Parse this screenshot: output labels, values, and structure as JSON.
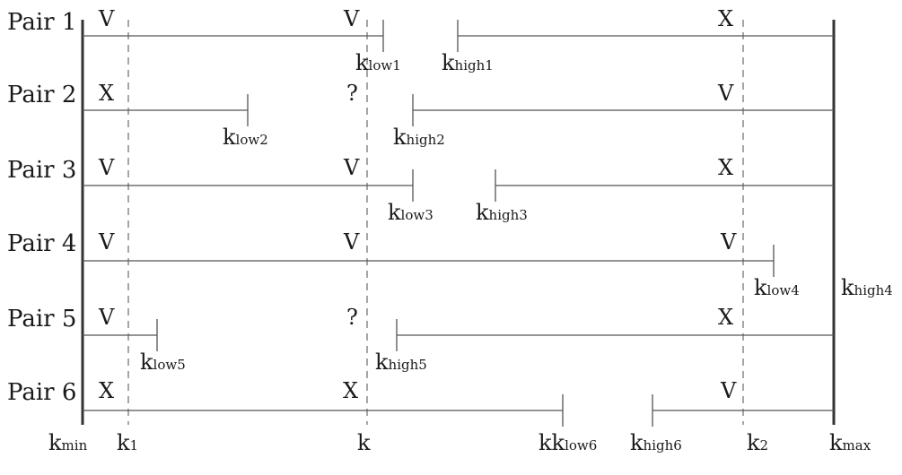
{
  "pairs": [
    {
      "label": "Pair 1",
      "marks": {
        "left": "V",
        "mid": "V",
        "right": "X"
      },
      "k_low": {
        "main": "k",
        "sub": "low1"
      },
      "k_high": {
        "main": "k",
        "sub": "high1"
      }
    },
    {
      "label": "Pair 2",
      "marks": {
        "left": "X",
        "mid": "?",
        "right": "V"
      },
      "k_low": {
        "main": "k",
        "sub": "low2"
      },
      "k_high": {
        "main": "k",
        "sub": "high2"
      }
    },
    {
      "label": "Pair 3",
      "marks": {
        "left": "V",
        "mid": "V",
        "right": "X"
      },
      "k_low": {
        "main": "k",
        "sub": "low3"
      },
      "k_high": {
        "main": "k",
        "sub": "high3"
      }
    },
    {
      "label": "Pair 4",
      "marks": {
        "left": "V",
        "mid": "V",
        "right": "V"
      },
      "k_low": {
        "main": "k",
        "sub": "low4"
      },
      "k_high": {
        "main": "k",
        "sub": "high4"
      }
    },
    {
      "label": "Pair 5",
      "marks": {
        "left": "V",
        "mid": "?",
        "right": "X"
      },
      "k_low": {
        "main": "k",
        "sub": "low5"
      },
      "k_high": {
        "main": "k",
        "sub": "high5"
      }
    },
    {
      "label": "Pair 6",
      "marks": {
        "left": "X",
        "mid": "X",
        "right": "V"
      },
      "k_low": {
        "main": "kk",
        "sub": "low6"
      },
      "k_high": {
        "main": "k",
        "sub": "high6"
      }
    }
  ],
  "axis_labels": {
    "kmin": {
      "main": "k",
      "sub": "min"
    },
    "k1": {
      "main": "k",
      "sub": "1"
    },
    "k": {
      "main": "k",
      "sub": ""
    },
    "k2": {
      "main": "k",
      "sub": "2"
    },
    "kmax": {
      "main": "k",
      "sub": "max"
    }
  },
  "colors": {
    "line": "#555555",
    "bound": "#333333",
    "text": "#1a1a1a"
  }
}
